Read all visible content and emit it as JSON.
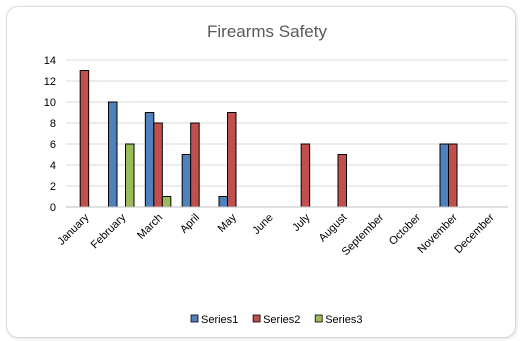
{
  "chart_data": {
    "type": "bar",
    "title": "Firearms Safety",
    "categories": [
      "January",
      "February",
      "March",
      "April",
      "May",
      "June",
      "July",
      "August",
      "September",
      "October",
      "November",
      "December"
    ],
    "series": [
      {
        "name": "Series1",
        "color": "#4f81bd",
        "values": [
          null,
          10,
          9,
          5,
          1,
          null,
          null,
          null,
          null,
          null,
          6,
          null
        ]
      },
      {
        "name": "Series2",
        "color": "#c0504d",
        "values": [
          13,
          null,
          8,
          8,
          9,
          null,
          6,
          5,
          null,
          null,
          6,
          null
        ]
      },
      {
        "name": "Series3",
        "color": "#9bbb59",
        "values": [
          null,
          6,
          1,
          null,
          null,
          null,
          null,
          null,
          null,
          null,
          null,
          null
        ]
      }
    ],
    "ylim": [
      0,
      14
    ],
    "yticks": [
      0,
      2,
      4,
      6,
      8,
      10,
      12,
      14
    ],
    "grid": true,
    "legend": "bottom"
  }
}
